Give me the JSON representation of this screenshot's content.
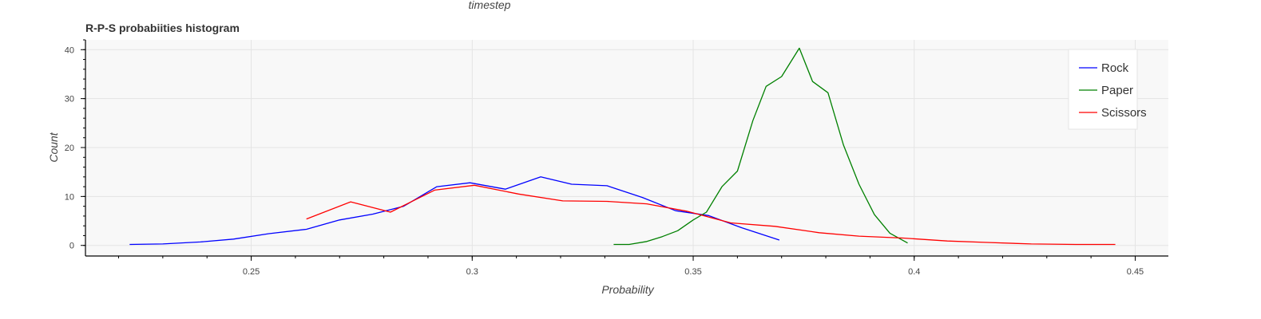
{
  "top_label": "timestep",
  "chart_data": {
    "type": "line",
    "title": "R-P-S probabiities histogram",
    "xlabel": "Probability",
    "ylabel": "Count",
    "xlim": [
      0.2125,
      0.4575
    ],
    "ylim": [
      -2,
      42
    ],
    "x_ticks": [
      0.25,
      0.3,
      0.35,
      0.4,
      0.45
    ],
    "x_tick_labels": [
      "0.25",
      "0.3",
      "0.35",
      "0.4",
      "0.45"
    ],
    "y_ticks": [
      0,
      10,
      20,
      30,
      40
    ],
    "y_tick_labels": [
      "0",
      "10",
      "20",
      "30",
      "40"
    ],
    "grid": true,
    "legend_position": "top-right",
    "series": [
      {
        "name": "Rock",
        "color": "#0000ff",
        "x": [
          0.2225,
          0.23,
          0.2385,
          0.246,
          0.254,
          0.2625,
          0.27,
          0.2775,
          0.2845,
          0.292,
          0.2995,
          0.3075,
          0.3155,
          0.3225,
          0.3305,
          0.3385,
          0.346,
          0.3535,
          0.361,
          0.3695
        ],
        "y": [
          0.2,
          0.3,
          0.7,
          1.3,
          2.4,
          3.3,
          5.2,
          6.4,
          8.0,
          12.0,
          12.8,
          11.5,
          14.0,
          12.5,
          12.2,
          9.8,
          7.1,
          6.1,
          3.6,
          1.1
        ]
      },
      {
        "name": "Paper",
        "color": "#008000",
        "x": [
          0.332,
          0.3355,
          0.3395,
          0.343,
          0.3465,
          0.35,
          0.353,
          0.3565,
          0.36,
          0.3635,
          0.3665,
          0.37,
          0.374,
          0.377,
          0.3805,
          0.384,
          0.3875,
          0.391,
          0.3945,
          0.3985
        ],
        "y": [
          0.2,
          0.2,
          0.8,
          1.8,
          3.0,
          5.2,
          6.8,
          12.0,
          15.2,
          25.5,
          32.5,
          34.5,
          40.3,
          33.5,
          31.2,
          20.5,
          12.5,
          6.3,
          2.5,
          0.5
        ]
      },
      {
        "name": "Scissors",
        "color": "#ff0000",
        "x": [
          0.2625,
          0.2725,
          0.2815,
          0.2915,
          0.3005,
          0.3105,
          0.3205,
          0.3305,
          0.3395,
          0.3485,
          0.3585,
          0.3685,
          0.3785,
          0.3875,
          0.3975,
          0.4075,
          0.4165,
          0.4265,
          0.4365,
          0.4455
        ],
        "y": [
          5.4,
          8.9,
          6.8,
          11.3,
          12.3,
          10.5,
          9.1,
          9.0,
          8.5,
          7.0,
          4.6,
          3.9,
          2.6,
          1.9,
          1.5,
          0.9,
          0.6,
          0.3,
          0.2,
          0.2
        ]
      }
    ]
  }
}
